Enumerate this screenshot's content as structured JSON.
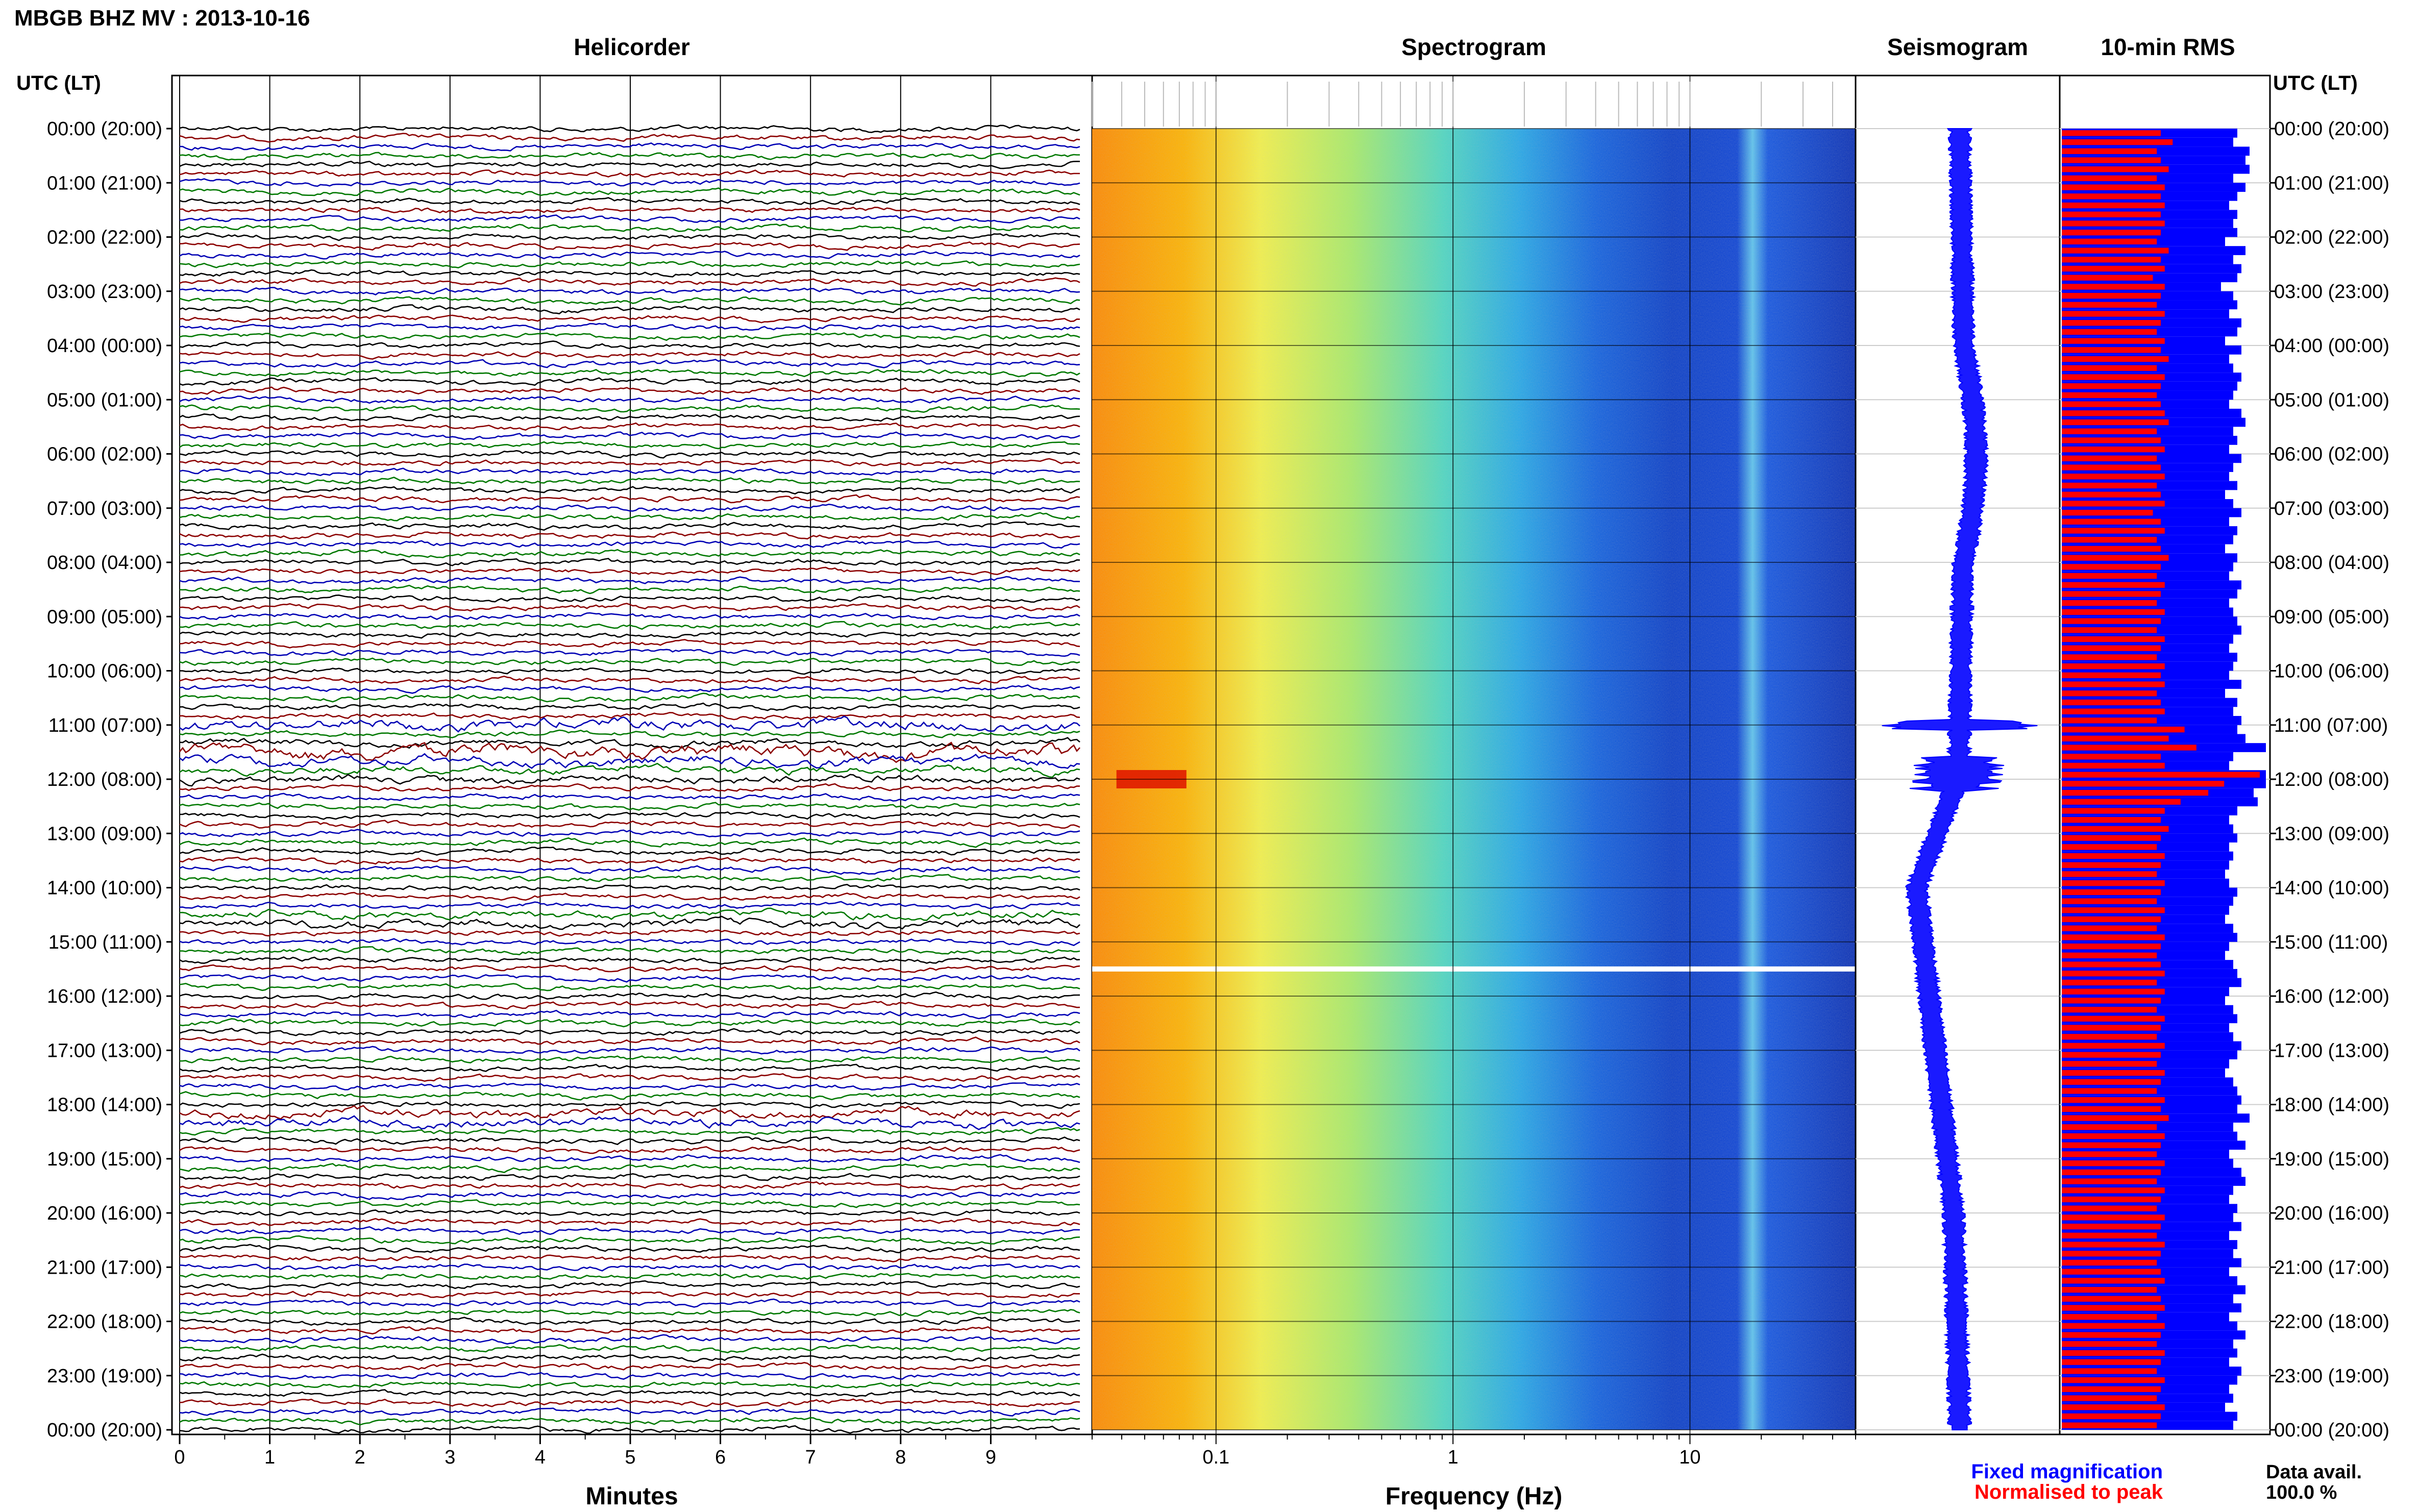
{
  "header": {
    "station_title": "MBGB BHZ MV : 2013-10-16",
    "utc_lt_label": "UTC (LT)"
  },
  "panels": {
    "helicorder": "Helicorder",
    "spectrogram": "Spectrogram",
    "seismogram": "Seismogram",
    "rms": "10-min RMS"
  },
  "footer": {
    "minutes_label": "Minutes",
    "frequency_label": "Frequency (Hz)",
    "legend_fixed": "Fixed magnification",
    "legend_normalised": "Normalised to peak",
    "data_avail_label": "Data avail.",
    "data_avail_value": "100.0 %"
  },
  "colors": {
    "trace_cycle": [
      "#000000",
      "#8b0000",
      "#0000b4",
      "#007800"
    ],
    "fixed": "#0000ff",
    "normalised": "#ff0000"
  },
  "chart_data": {
    "type": "heatmap",
    "time_labels": [
      "00:00 (20:00)",
      "01:00 (21:00)",
      "02:00 (22:00)",
      "03:00 (23:00)",
      "04:00 (00:00)",
      "05:00 (01:00)",
      "06:00 (02:00)",
      "07:00 (03:00)",
      "08:00 (04:00)",
      "09:00 (05:00)",
      "10:00 (06:00)",
      "11:00 (07:00)",
      "12:00 (08:00)",
      "13:00 (09:00)",
      "14:00 (10:00)",
      "15:00 (11:00)",
      "16:00 (12:00)",
      "17:00 (13:00)",
      "18:00 (14:00)",
      "19:00 (15:00)",
      "20:00 (16:00)",
      "21:00 (17:00)",
      "22:00 (18:00)",
      "23:00 (19:00)",
      "00:00 (20:00)"
    ],
    "helicorder": {
      "x_ticks": [
        "0",
        "1",
        "2",
        "3",
        "4",
        "5",
        "6",
        "7",
        "8",
        "9"
      ],
      "xlim": [
        0,
        10
      ],
      "lines_per_hour": 6,
      "disturbed_lines": [
        {
          "line": 66,
          "amp": 2.2
        },
        {
          "line": 68,
          "amp": 1.4
        },
        {
          "line": 69,
          "amp": 2.8
        },
        {
          "line": 70,
          "amp": 2.0
        },
        {
          "line": 71,
          "amp": 1.6
        },
        {
          "line": 72,
          "amp": 1.6
        },
        {
          "line": 87,
          "amp": 1.6
        },
        {
          "line": 88,
          "amp": 1.6
        },
        {
          "line": 109,
          "amp": 1.8
        },
        {
          "line": 110,
          "amp": 1.8
        }
      ]
    },
    "spectrogram": {
      "x_scale": "log",
      "xlim": [
        0.03,
        50
      ],
      "x_tick_labels": [
        "0.1",
        "1",
        "10"
      ],
      "gap_hour": 15.5
    },
    "rms": {
      "fixed_magnification": [
        0.86,
        0.84,
        0.92,
        0.9,
        0.92,
        0.84,
        0.9,
        0.86,
        0.82,
        0.86,
        0.84,
        0.86,
        0.8,
        0.9,
        0.84,
        0.88,
        0.86,
        0.78,
        0.84,
        0.86,
        0.82,
        0.88,
        0.86,
        0.8,
        0.88,
        0.82,
        0.84,
        0.88,
        0.86,
        0.84,
        0.82,
        0.88,
        0.9,
        0.84,
        0.86,
        0.82,
        0.88,
        0.84,
        0.82,
        0.86,
        0.8,
        0.84,
        0.88,
        0.82,
        0.86,
        0.84,
        0.8,
        0.86,
        0.84,
        0.82,
        0.88,
        0.86,
        0.82,
        0.84,
        0.86,
        0.88,
        0.84,
        0.82,
        0.86,
        0.84,
        0.82,
        0.88,
        0.8,
        0.86,
        0.84,
        0.88,
        0.86,
        0.9,
        1.0,
        0.84,
        0.82,
        1.02,
        1.0,
        0.94,
        0.96,
        0.86,
        0.82,
        0.84,
        0.86,
        0.82,
        0.84,
        0.82,
        0.8,
        0.82,
        0.86,
        0.84,
        0.82,
        0.8,
        0.84,
        0.86,
        0.82,
        0.8,
        0.84,
        0.86,
        0.88,
        0.82,
        0.8,
        0.84,
        0.86,
        0.82,
        0.84,
        0.88,
        0.86,
        0.82,
        0.8,
        0.84,
        0.86,
        0.88,
        0.86,
        0.92,
        0.84,
        0.86,
        0.9,
        0.82,
        0.84,
        0.88,
        0.9,
        0.84,
        0.82,
        0.86,
        0.84,
        0.88,
        0.82,
        0.86,
        0.84,
        0.88,
        0.82,
        0.86,
        0.9,
        0.84,
        0.88,
        0.82,
        0.86,
        0.9,
        0.84,
        0.86,
        0.82,
        0.88,
        0.86,
        0.82,
        0.84,
        0.8,
        0.86,
        0.84
      ],
      "normalised_to_peak": [
        0.5,
        0.56,
        0.48,
        0.5,
        0.54,
        0.48,
        0.52,
        0.5,
        0.52,
        0.5,
        0.52,
        0.5,
        0.48,
        0.54,
        0.5,
        0.52,
        0.46,
        0.52,
        0.5,
        0.48,
        0.52,
        0.5,
        0.48,
        0.52,
        0.5,
        0.54,
        0.48,
        0.52,
        0.5,
        0.48,
        0.5,
        0.52,
        0.54,
        0.48,
        0.5,
        0.52,
        0.48,
        0.5,
        0.52,
        0.48,
        0.5,
        0.52,
        0.46,
        0.5,
        0.52,
        0.48,
        0.5,
        0.54,
        0.5,
        0.48,
        0.52,
        0.5,
        0.48,
        0.52,
        0.5,
        0.48,
        0.52,
        0.5,
        0.48,
        0.52,
        0.5,
        0.52,
        0.48,
        0.5,
        0.52,
        0.48,
        0.62,
        0.54,
        0.68,
        0.5,
        0.52,
        1.0,
        0.82,
        0.74,
        0.6,
        0.52,
        0.5,
        0.54,
        0.5,
        0.48,
        0.52,
        0.5,
        0.48,
        0.52,
        0.5,
        0.48,
        0.52,
        0.5,
        0.48,
        0.52,
        0.5,
        0.48,
        0.5,
        0.52,
        0.48,
        0.52,
        0.5,
        0.48,
        0.52,
        0.5,
        0.48,
        0.52,
        0.5,
        0.48,
        0.52,
        0.5,
        0.48,
        0.52,
        0.5,
        0.54,
        0.48,
        0.52,
        0.5,
        0.48,
        0.52,
        0.5,
        0.48,
        0.52,
        0.5,
        0.48,
        0.52,
        0.5,
        0.48,
        0.52,
        0.5,
        0.48,
        0.5,
        0.52,
        0.48,
        0.5,
        0.52,
        0.48,
        0.52,
        0.5,
        0.48,
        0.52,
        0.5,
        0.48,
        0.52,
        0.5,
        0.48,
        0.52,
        0.5,
        0.48
      ]
    }
  }
}
